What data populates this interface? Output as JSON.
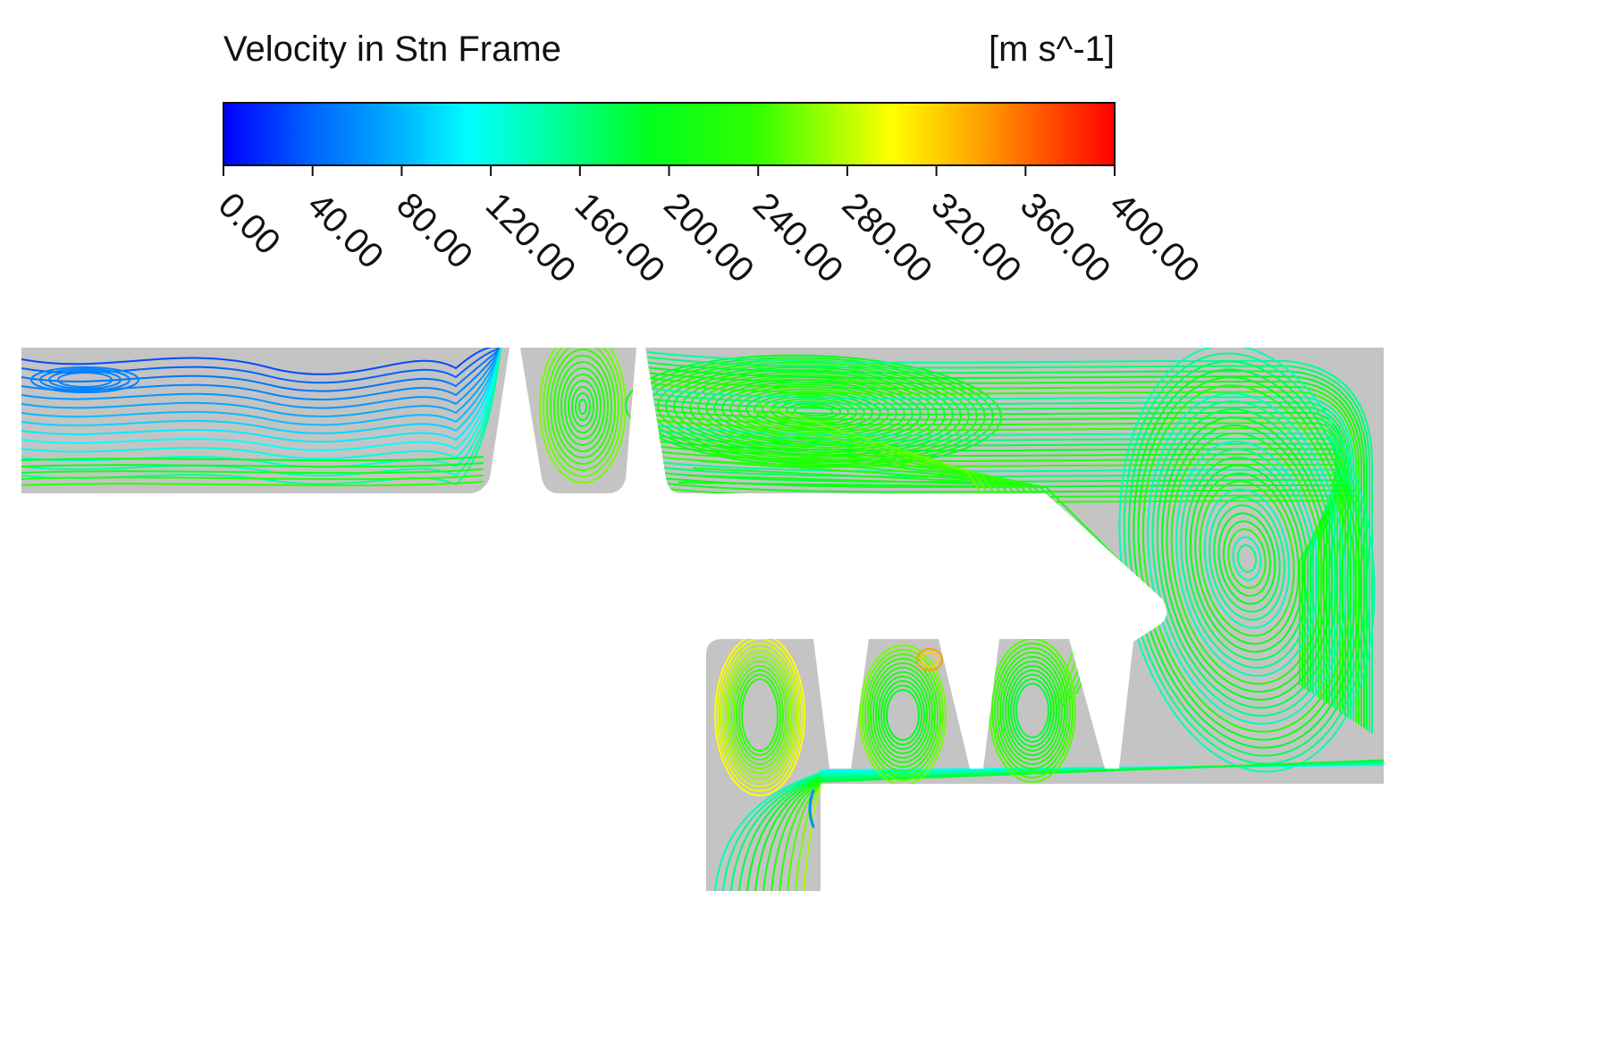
{
  "chart_data": {
    "type": "contour",
    "title": "Velocity in Stn Frame",
    "units": "[m s^-1]",
    "colormap": {
      "min": 0,
      "max": 400,
      "stops": [
        {
          "value": 0,
          "color": "#0000ff"
        },
        {
          "value": 40,
          "color": "#0064ff"
        },
        {
          "value": 80,
          "color": "#00b4ff"
        },
        {
          "value": 110,
          "color": "#00ffff"
        },
        {
          "value": 150,
          "color": "#00ff96"
        },
        {
          "value": 190,
          "color": "#00ff1e"
        },
        {
          "value": 240,
          "color": "#32ff00"
        },
        {
          "value": 300,
          "color": "#ffff00"
        },
        {
          "value": 340,
          "color": "#ffa000"
        },
        {
          "value": 400,
          "color": "#ff0000"
        }
      ]
    },
    "tick_labels": [
      "0.00",
      "40.00",
      "80.00",
      "120.00",
      "160.00",
      "200.00",
      "240.00",
      "280.00",
      "320.00",
      "360.00",
      "400.00"
    ],
    "tick_values": [
      0,
      40,
      80,
      120,
      160,
      200,
      240,
      280,
      320,
      360,
      400
    ],
    "domain_color": "#c4c4c4"
  }
}
